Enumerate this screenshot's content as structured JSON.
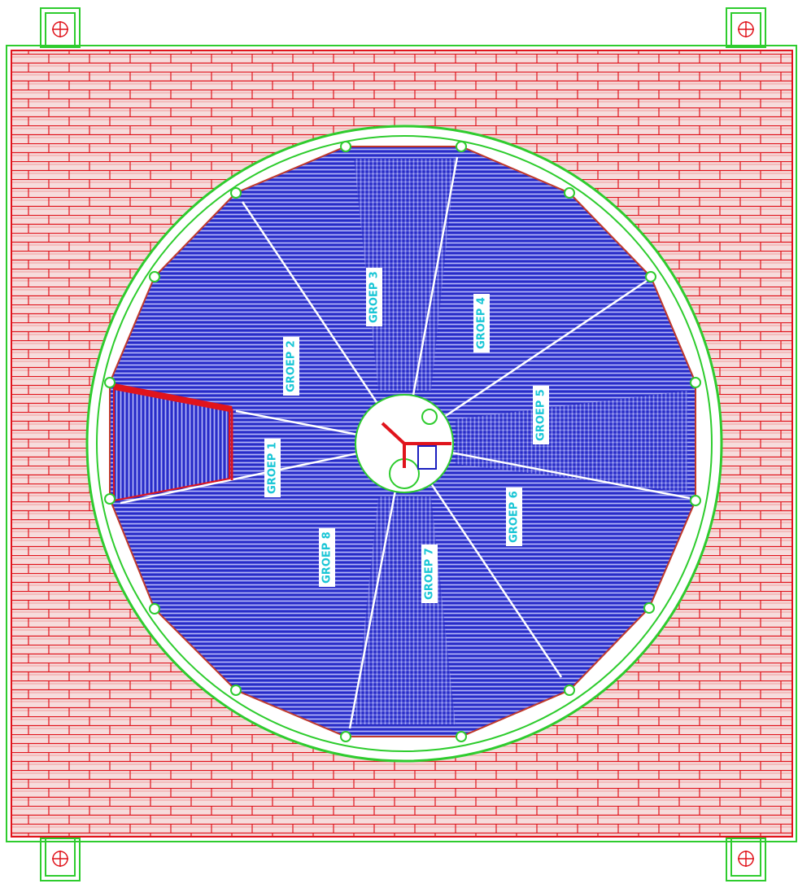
{
  "groups": [
    "GROEP 1",
    "GROEP 2",
    "GROEP 3",
    "GROEP 4",
    "GROEP 5",
    "GROEP 6",
    "GROEP 7",
    "GROEP 8"
  ]
}
